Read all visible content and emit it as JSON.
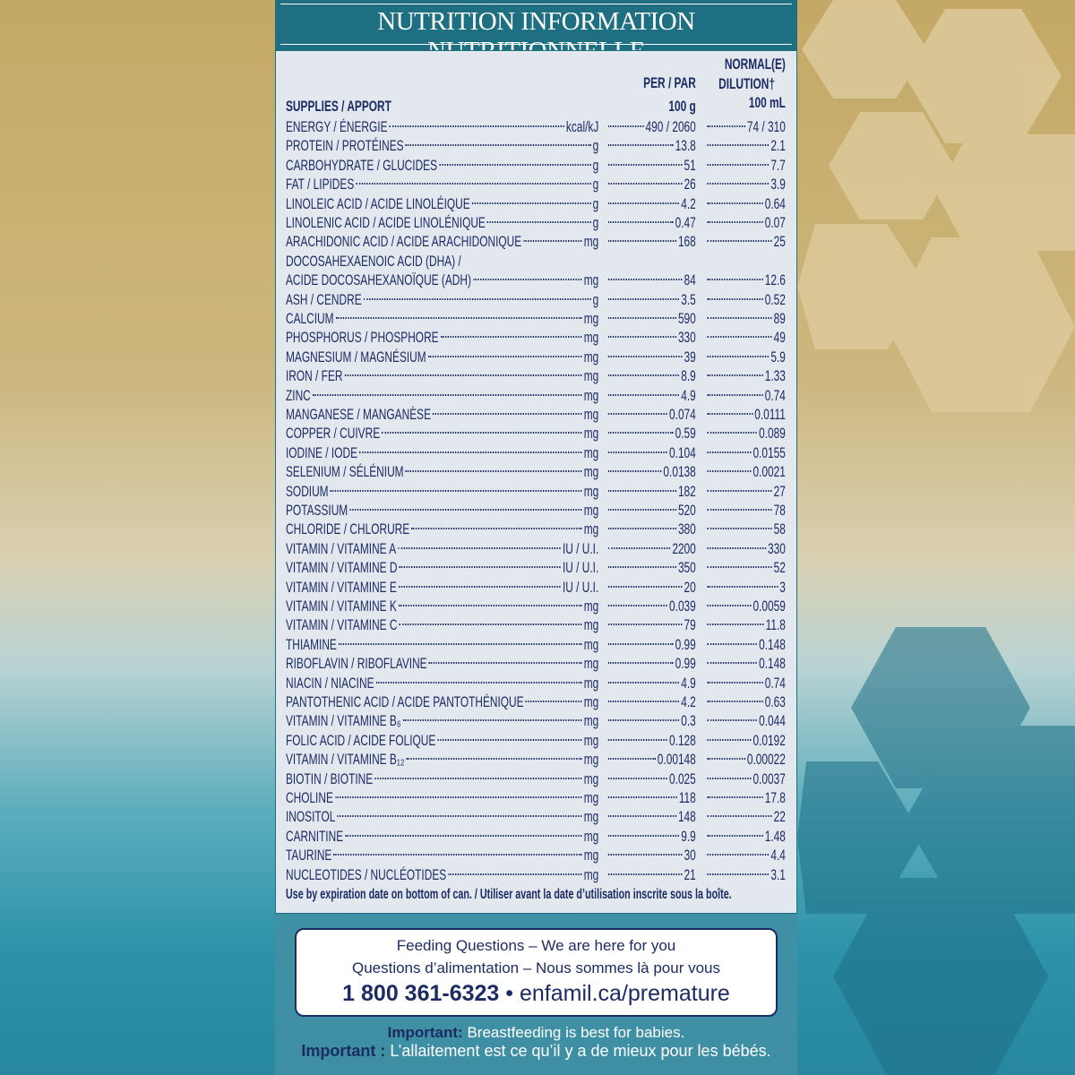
{
  "header": {
    "title": "NUTRITION INFORMATION NUTRITIONNELLE"
  },
  "columns": {
    "supplies": "SUPPLIES / APPORT",
    "per": "PER / PAR",
    "per_unit": "100 g",
    "dilution": [
      "NORMAL(E)",
      "DILUTION†"
    ],
    "dilution_unit": "100 mL"
  },
  "rows": [
    {
      "name": "ENERGY / ÉNERGIE",
      "unit": "kcal/kJ",
      "per_100g": "490 / 2060",
      "per_100ml": "74 / 310"
    },
    {
      "name": "PROTEIN / PROTÉINES",
      "unit": "g",
      "per_100g": "13.8",
      "per_100ml": "2.1"
    },
    {
      "name": "CARBOHYDRATE / GLUCIDES",
      "unit": "g",
      "per_100g": "51",
      "per_100ml": "7.7"
    },
    {
      "name": "FAT / LIPIDES",
      "unit": "g",
      "per_100g": "26",
      "per_100ml": "3.9"
    },
    {
      "name": "LINOLEIC ACID / ACIDE LINOLÉIQUE",
      "unit": "g",
      "per_100g": "4.2",
      "per_100ml": "0.64"
    },
    {
      "name": "LINOLENIC ACID / ACIDE LINOLÉNIQUE",
      "unit": "g",
      "per_100g": "0.47",
      "per_100ml": "0.07"
    },
    {
      "name": "ARACHIDONIC ACID / ACIDE ARACHIDONIQUE",
      "unit": "mg",
      "per_100g": "168",
      "per_100ml": "25"
    },
    {
      "name": "DOCOSAHEXAENOIC ACID (DHA) /",
      "name_2": "ACIDE DOCOSAHEXANOÏQUE (ADH)",
      "unit": "mg",
      "per_100g": "84",
      "per_100ml": "12.6"
    },
    {
      "name": "ASH / CENDRE",
      "unit": "g",
      "per_100g": "3.5",
      "per_100ml": "0.52"
    },
    {
      "name": "CALCIUM",
      "unit": "mg",
      "per_100g": "590",
      "per_100ml": "89"
    },
    {
      "name": "PHOSPHORUS / PHOSPHORE",
      "unit": "mg",
      "per_100g": "330",
      "per_100ml": "49"
    },
    {
      "name": "MAGNESIUM / MAGNÉSIUM",
      "unit": "mg",
      "per_100g": "39",
      "per_100ml": "5.9"
    },
    {
      "name": "IRON / FER",
      "unit": "mg",
      "per_100g": "8.9",
      "per_100ml": "1.33"
    },
    {
      "name": "ZINC",
      "unit": "mg",
      "per_100g": "4.9",
      "per_100ml": "0.74"
    },
    {
      "name": "MANGANESE / MANGANÈSE",
      "unit": "mg",
      "per_100g": "0.074",
      "per_100ml": "0.0111"
    },
    {
      "name": "COPPER / CUIVRE",
      "unit": "mg",
      "per_100g": "0.59",
      "per_100ml": "0.089"
    },
    {
      "name": "IODINE / IODE",
      "unit": "mg",
      "per_100g": "0.104",
      "per_100ml": "0.0155"
    },
    {
      "name": "SELENIUM / SÉLÉNIUM",
      "unit": "mg",
      "per_100g": "0.0138",
      "per_100ml": "0.0021"
    },
    {
      "name": "SODIUM",
      "unit": "mg",
      "per_100g": "182",
      "per_100ml": "27"
    },
    {
      "name": "POTASSIUM",
      "unit": "mg",
      "per_100g": "520",
      "per_100ml": "78"
    },
    {
      "name": "CHLORIDE / CHLORURE",
      "unit": "mg",
      "per_100g": "380",
      "per_100ml": "58"
    },
    {
      "name": "VITAMIN / VITAMINE A",
      "unit": "IU / U.I.",
      "per_100g": "2200",
      "per_100ml": "330"
    },
    {
      "name": "VITAMIN / VITAMINE D",
      "unit": "IU / U.I.",
      "per_100g": "350",
      "per_100ml": "52"
    },
    {
      "name": "VITAMIN / VITAMINE E",
      "unit": "IU / U.I.",
      "per_100g": "20",
      "per_100ml": "3"
    },
    {
      "name": "VITAMIN / VITAMINE K",
      "unit": "mg",
      "per_100g": "0.039",
      "per_100ml": "0.0059"
    },
    {
      "name": "VITAMIN / VITAMINE C",
      "unit": "mg",
      "per_100g": "79",
      "per_100ml": "11.8"
    },
    {
      "name": "THIAMINE",
      "unit": "mg",
      "per_100g": "0.99",
      "per_100ml": "0.148"
    },
    {
      "name": "RIBOFLAVIN / RIBOFLAVINE",
      "unit": "mg",
      "per_100g": "0.99",
      "per_100ml": "0.148"
    },
    {
      "name": "NIACIN / NIACINE",
      "unit": "mg",
      "per_100g": "4.9",
      "per_100ml": "0.74"
    },
    {
      "name": "PANTOTHENIC ACID / ACIDE PANTOTHÉNIQUE",
      "unit": "mg",
      "per_100g": "4.2",
      "per_100ml": "0.63"
    },
    {
      "name": "VITAMIN / VITAMINE B₆",
      "unit": "mg",
      "per_100g": "0.3",
      "per_100ml": "0.044"
    },
    {
      "name": "FOLIC ACID / ACIDE FOLIQUE",
      "unit": "mg",
      "per_100g": "0.128",
      "per_100ml": "0.0192"
    },
    {
      "name": "VITAMIN / VITAMINE B₁₂",
      "unit": "mg",
      "per_100g": "0.00148",
      "per_100ml": "0.00022"
    },
    {
      "name": "BIOTIN / BIOTINE",
      "unit": "mg",
      "per_100g": "0.025",
      "per_100ml": "0.0037"
    },
    {
      "name": "CHOLINE",
      "unit": "mg",
      "per_100g": "118",
      "per_100ml": "17.8"
    },
    {
      "name": "INOSITOL",
      "unit": "mg",
      "per_100g": "148",
      "per_100ml": "22"
    },
    {
      "name": "CARNITINE",
      "unit": "mg",
      "per_100g": "9.9",
      "per_100ml": "1.48"
    },
    {
      "name": "TAURINE",
      "unit": "mg",
      "per_100g": "30",
      "per_100ml": "4.4"
    },
    {
      "name": "NUCLEOTIDES / NUCLÉOTIDES",
      "unit": "mg",
      "per_100g": "21",
      "per_100ml": "3.1"
    }
  ],
  "note": "Use by expiration date on bottom of can. / Utiliser avant la date d’utilisation inscrite sous la boîte.",
  "contact": {
    "line_1": "Feeding Questions – We are here for you",
    "line_2": "Questions d’alimentation – Nous sommes là pour vous",
    "phone": "1 800 361-6323",
    "separator": "•",
    "website": "enfamil.ca/premature"
  },
  "footer": {
    "en_label": "Important:",
    "en_text": "Breastfeeding is best for babies.",
    "fr_label": "Important :",
    "fr_text": "L’allaitement est ce qu’il y a de mieux pour les bébés."
  }
}
